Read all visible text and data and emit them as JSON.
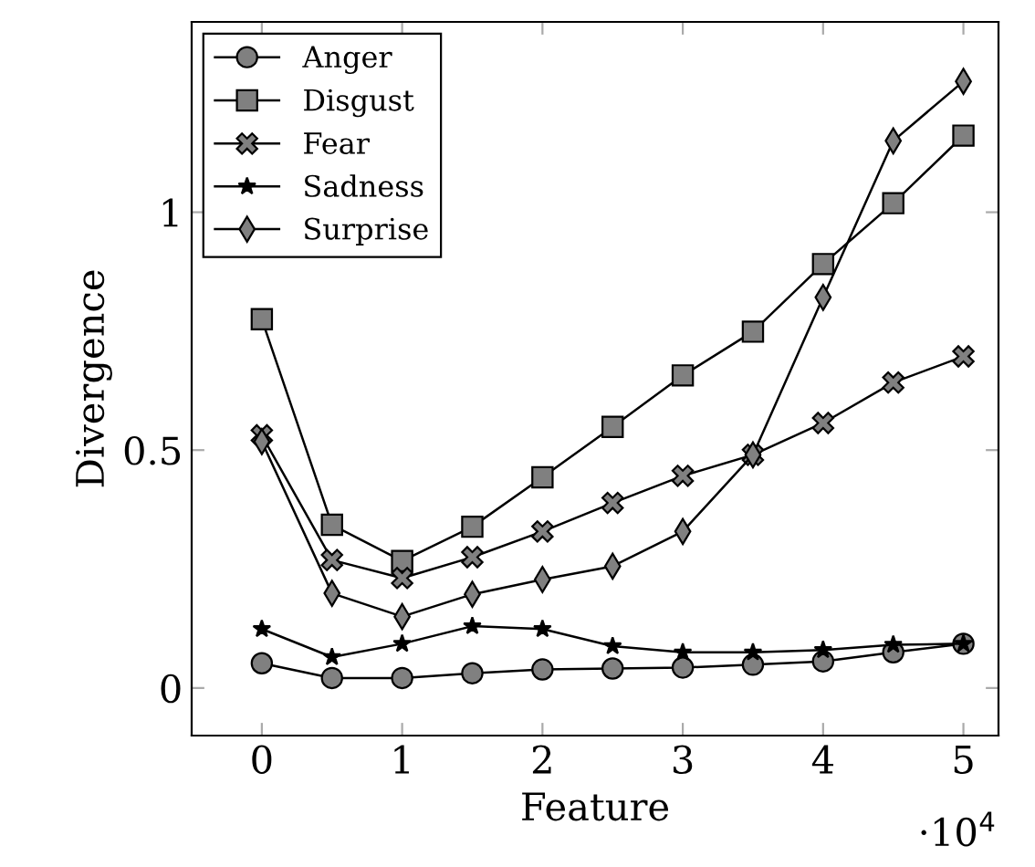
{
  "chart_data": {
    "type": "line",
    "xlabel": "Feature",
    "ylabel": "Divergence",
    "x": [
      0,
      0.5,
      1,
      1.5,
      2,
      2.5,
      3,
      3.5,
      4,
      4.5,
      5
    ],
    "xlim": [
      -0.5,
      5.25
    ],
    "xticks": [
      0,
      1,
      2,
      3,
      4,
      5
    ],
    "ylim": [
      -0.1,
      1.4
    ],
    "yticks": [
      0,
      0.5,
      1
    ],
    "annotations": [
      "·10$^{4}$"
    ],
    "legend": "top left",
    "grid": false,
    "series": [
      {
        "name": "Anger",
        "color": "#808080",
        "marker": "circle",
        "values": [
          0.052,
          0.021,
          0.021,
          0.031,
          0.039,
          0.041,
          0.043,
          0.049,
          0.056,
          0.075,
          0.093
        ]
      },
      {
        "name": "Disgust",
        "color": "#808080",
        "marker": "square",
        "values": [
          0.775,
          0.343,
          0.267,
          0.339,
          0.443,
          0.549,
          0.657,
          0.749,
          0.891,
          1.019,
          1.161
        ]
      },
      {
        "name": "Fear",
        "color": "#808080",
        "marker": "cross",
        "values": [
          0.531,
          0.269,
          0.231,
          0.275,
          0.329,
          0.389,
          0.446,
          0.49,
          0.557,
          0.642,
          0.697
        ]
      },
      {
        "name": "Sadness",
        "color": "#000000",
        "marker": "star",
        "values": [
          0.124,
          0.065,
          0.093,
          0.13,
          0.124,
          0.088,
          0.075,
          0.075,
          0.08,
          0.091,
          0.093
        ]
      },
      {
        "name": "Surprise",
        "color": "#808080",
        "marker": "diamond",
        "values": [
          0.518,
          0.199,
          0.15,
          0.197,
          0.228,
          0.256,
          0.329,
          0.49,
          0.821,
          1.15,
          1.275
        ]
      }
    ]
  }
}
